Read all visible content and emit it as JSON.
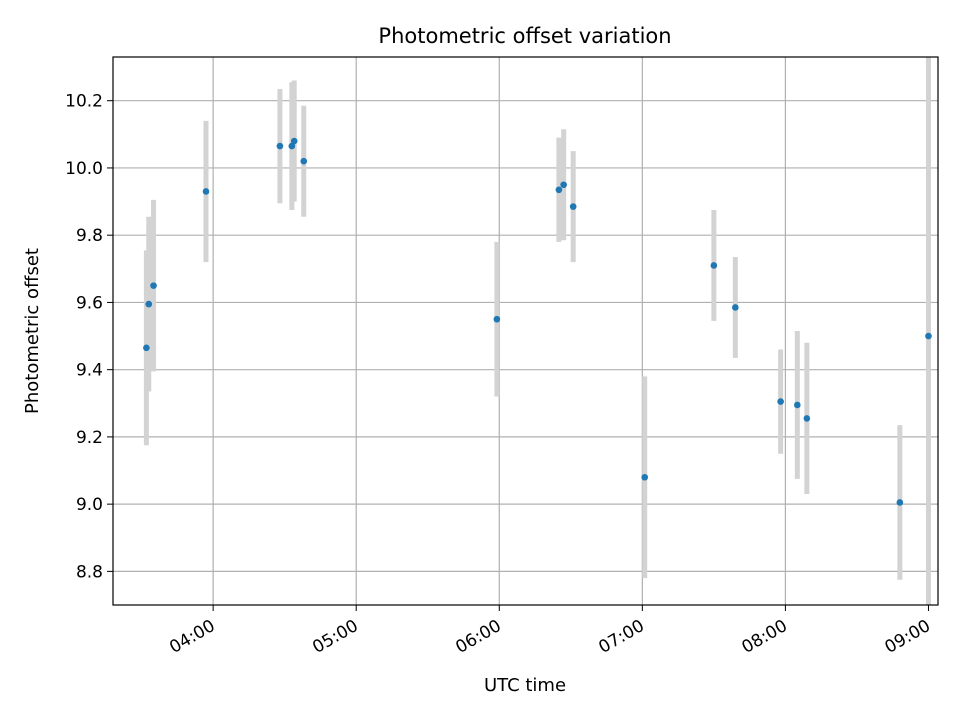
{
  "chart_data": {
    "type": "scatter",
    "title": "Photometric offset variation",
    "xlabel": "UTC time",
    "ylabel": "Photometric offset",
    "x_ticks": [
      "04:00",
      "05:00",
      "06:00",
      "07:00",
      "08:00",
      "09:00"
    ],
    "y_ticks": [
      "8.8",
      "9.0",
      "9.2",
      "9.4",
      "9.6",
      "9.8",
      "10.0",
      "10.2"
    ],
    "xlim": [
      "03:18",
      "09:04"
    ],
    "ylim": [
      8.7,
      10.33
    ],
    "grid": true,
    "colors": {
      "point": "#1f77b4",
      "errorbar": "#d3d3d3",
      "grid": "#b0b0b0"
    },
    "points": [
      {
        "x": "03:32",
        "y": 9.465,
        "err": 0.29
      },
      {
        "x": "03:33",
        "y": 9.595,
        "err": 0.26
      },
      {
        "x": "03:35",
        "y": 9.65,
        "err": 0.255
      },
      {
        "x": "03:57",
        "y": 9.93,
        "err": 0.21
      },
      {
        "x": "04:28",
        "y": 10.065,
        "err": 0.17
      },
      {
        "x": "04:33",
        "y": 10.065,
        "err": 0.19
      },
      {
        "x": "04:34",
        "y": 10.08,
        "err": 0.18
      },
      {
        "x": "04:38",
        "y": 10.02,
        "err": 0.165
      },
      {
        "x": "05:59",
        "y": 9.55,
        "err": 0.23
      },
      {
        "x": "06:25",
        "y": 9.935,
        "err": 0.155
      },
      {
        "x": "06:27",
        "y": 9.95,
        "err": 0.165
      },
      {
        "x": "06:31",
        "y": 9.885,
        "err": 0.165
      },
      {
        "x": "07:01",
        "y": 9.08,
        "err": 0.3
      },
      {
        "x": "07:30",
        "y": 9.71,
        "err": 0.165
      },
      {
        "x": "07:39",
        "y": 9.585,
        "err": 0.15
      },
      {
        "x": "07:58",
        "y": 9.305,
        "err": 0.155
      },
      {
        "x": "08:05",
        "y": 9.295,
        "err": 0.22
      },
      {
        "x": "08:09",
        "y": 9.255,
        "err": 0.225
      },
      {
        "x": "08:48",
        "y": 9.005,
        "err": 0.23
      },
      {
        "x": "09:00",
        "y": 9.5,
        "err": 1.3
      }
    ]
  }
}
